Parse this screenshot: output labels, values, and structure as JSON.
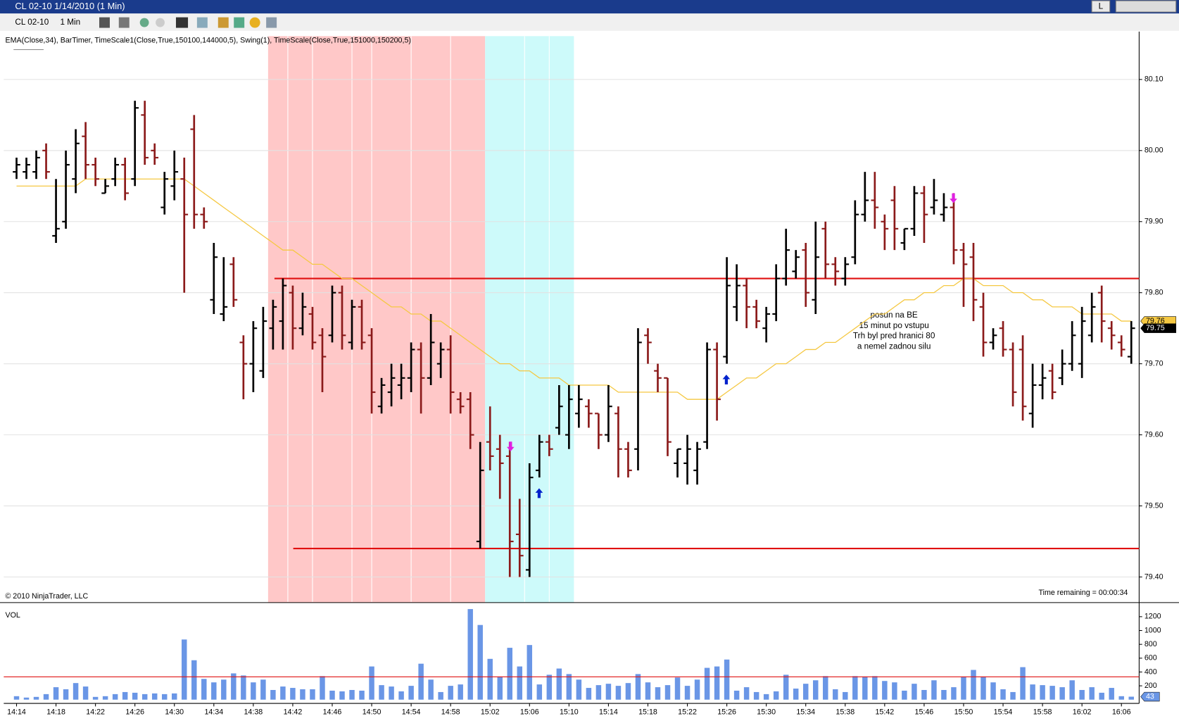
{
  "window_title": "CL 02-10  1/14/2010 (1 Min)",
  "window_button": "L",
  "toolbar": {
    "instrument": "CL 02-10",
    "interval": "1 Min"
  },
  "chart_data": {
    "type": "ohlc",
    "indicators_label": "EMA(Close,34), BarTimer, TimeScale1(Close,True,150100,144000,5), Swing(1), TimeScale(Close,True,151000,150200,5)",
    "copyright": "© 2010 NinjaTrader, LLC",
    "time_remaining": "Time remaining = 00:00:34",
    "volume_label": "VOL",
    "annotation": [
      "posun na BE",
      "15 minut po vstupu",
      "Trh byl pred hranici 80",
      "a nemel zadnou silu"
    ],
    "up_color": "#000000",
    "down_color": "#8b1a1a",
    "ema_color": "#f5c842",
    "volume_color": "#6a96e6",
    "level_color": "#e01010",
    "categories": [
      "14:14",
      null,
      null,
      null,
      "14:18",
      null,
      null,
      null,
      "14:22",
      null,
      null,
      null,
      "14:26",
      null,
      null,
      null,
      "14:30",
      null,
      null,
      null,
      "14:34",
      null,
      null,
      null,
      "14:38",
      null,
      null,
      null,
      "14:42",
      null,
      null,
      null,
      "14:46",
      null,
      null,
      null,
      "14:50",
      null,
      null,
      null,
      "14:54",
      null,
      null,
      null,
      "14:58",
      null,
      null,
      null,
      "15:02",
      null,
      null,
      null,
      "15:06",
      null,
      null,
      null,
      "15:10",
      null,
      null,
      null,
      "15:14",
      null,
      null,
      null,
      "15:18",
      null,
      null,
      null,
      "15:22",
      null,
      null,
      null,
      "15:26",
      null,
      null,
      null,
      "15:30",
      null,
      null,
      null,
      "15:34",
      null,
      null,
      null,
      "15:38",
      null,
      null,
      null,
      "15:42",
      null,
      null,
      null,
      "15:46",
      null,
      null,
      null,
      "15:50",
      null,
      null,
      null,
      "15:54",
      null,
      null,
      null,
      "15:58",
      null,
      null,
      null,
      "16:02",
      null,
      null,
      null,
      "16:06",
      null
    ],
    "bars": [
      [
        79.97,
        79.99,
        79.96,
        79.98
      ],
      [
        79.97,
        79.99,
        79.96,
        79.98
      ],
      [
        79.97,
        80.0,
        79.96,
        79.99
      ],
      [
        80.0,
        80.01,
        79.96,
        79.97
      ],
      [
        79.88,
        79.96,
        79.87,
        79.89
      ],
      [
        79.9,
        80.0,
        79.89,
        79.98
      ],
      [
        79.96,
        80.03,
        79.94,
        80.01
      ],
      [
        80.02,
        80.04,
        79.96,
        79.98
      ],
      [
        79.98,
        79.99,
        79.95,
        79.96
      ],
      [
        79.94,
        79.96,
        79.94,
        79.95
      ],
      [
        79.96,
        79.99,
        79.95,
        79.98
      ],
      [
        79.98,
        79.99,
        79.93,
        79.94
      ],
      [
        79.96,
        80.07,
        79.95,
        80.06
      ],
      [
        80.05,
        80.07,
        79.98,
        79.99
      ],
      [
        80.0,
        80.01,
        79.98,
        79.99
      ],
      [
        79.92,
        79.97,
        79.91,
        79.96
      ],
      [
        79.95,
        80.0,
        79.93,
        79.97
      ],
      [
        79.96,
        79.99,
        79.8,
        79.91
      ],
      [
        80.03,
        80.05,
        79.89,
        79.91
      ],
      [
        79.91,
        79.92,
        79.89,
        79.9
      ],
      [
        79.79,
        79.87,
        79.77,
        79.85
      ],
      [
        79.77,
        79.85,
        79.76,
        79.78
      ],
      [
        79.84,
        79.85,
        79.78,
        79.79
      ],
      [
        79.73,
        79.74,
        79.65,
        79.7
      ],
      [
        79.7,
        79.76,
        79.66,
        79.75
      ],
      [
        79.69,
        79.78,
        79.68,
        79.76
      ],
      [
        79.75,
        79.79,
        79.72,
        79.78
      ],
      [
        79.76,
        79.82,
        79.72,
        79.81
      ],
      [
        79.8,
        79.81,
        79.72,
        79.75
      ],
      [
        79.75,
        79.8,
        79.74,
        79.78
      ],
      [
        79.77,
        79.78,
        79.72,
        79.73
      ],
      [
        79.74,
        79.75,
        79.66,
        79.71
      ],
      [
        79.74,
        79.81,
        79.73,
        79.8
      ],
      [
        79.8,
        79.81,
        79.72,
        79.74
      ],
      [
        79.73,
        79.79,
        79.72,
        79.78
      ],
      [
        79.78,
        79.79,
        79.72,
        79.73
      ],
      [
        79.74,
        79.75,
        79.63,
        79.66
      ],
      [
        79.64,
        79.68,
        79.63,
        79.67
      ],
      [
        79.66,
        79.7,
        79.64,
        79.68
      ],
      [
        79.67,
        79.7,
        79.65,
        79.68
      ],
      [
        79.68,
        79.73,
        79.66,
        79.72
      ],
      [
        79.72,
        79.73,
        79.63,
        79.68
      ],
      [
        79.68,
        79.77,
        79.67,
        79.73
      ],
      [
        79.7,
        79.73,
        79.68,
        79.72
      ],
      [
        79.72,
        79.74,
        79.63,
        79.66
      ],
      [
        79.65,
        79.66,
        79.63,
        79.64
      ],
      [
        79.65,
        79.66,
        79.58,
        79.6
      ],
      [
        79.45,
        79.59,
        79.44,
        79.55
      ],
      [
        79.59,
        79.64,
        79.55,
        79.57
      ],
      [
        79.58,
        79.6,
        79.51,
        79.56
      ],
      [
        79.57,
        79.59,
        79.4,
        79.45
      ],
      [
        79.46,
        79.51,
        79.4,
        79.43
      ],
      [
        79.41,
        79.56,
        79.4,
        79.54
      ],
      [
        79.55,
        79.6,
        79.54,
        79.59
      ],
      [
        79.59,
        79.6,
        79.57,
        79.58
      ],
      [
        79.61,
        79.67,
        79.6,
        79.64
      ],
      [
        79.6,
        79.67,
        79.58,
        79.65
      ],
      [
        79.63,
        79.67,
        79.61,
        79.65
      ],
      [
        79.64,
        79.65,
        79.61,
        79.63
      ],
      [
        79.63,
        79.63,
        79.58,
        79.6
      ],
      [
        79.6,
        79.67,
        79.59,
        79.64
      ],
      [
        79.63,
        79.64,
        79.54,
        79.58
      ],
      [
        79.58,
        79.59,
        79.54,
        79.55
      ],
      [
        79.58,
        79.75,
        79.55,
        79.73
      ],
      [
        79.74,
        79.75,
        79.7,
        79.73
      ],
      [
        79.69,
        79.7,
        79.66,
        79.68
      ],
      [
        79.68,
        79.68,
        79.57,
        79.59
      ],
      [
        79.56,
        79.58,
        79.54,
        79.58
      ],
      [
        79.56,
        79.6,
        79.53,
        79.58
      ],
      [
        79.55,
        79.59,
        79.53,
        79.58
      ],
      [
        79.59,
        79.73,
        79.58,
        79.72
      ],
      [
        79.72,
        79.73,
        79.62,
        79.65
      ],
      [
        79.71,
        79.85,
        79.7,
        79.81
      ],
      [
        79.78,
        79.84,
        79.76,
        79.81
      ],
      [
        79.81,
        79.82,
        79.75,
        79.78
      ],
      [
        79.78,
        79.79,
        79.75,
        79.76
      ],
      [
        79.75,
        79.78,
        79.73,
        79.77
      ],
      [
        79.77,
        79.84,
        79.76,
        79.82
      ],
      [
        79.82,
        79.89,
        79.81,
        79.86
      ],
      [
        79.83,
        79.86,
        79.82,
        79.85
      ],
      [
        79.86,
        79.87,
        79.78,
        79.8
      ],
      [
        79.79,
        79.9,
        79.77,
        79.85
      ],
      [
        79.89,
        79.9,
        79.82,
        79.84
      ],
      [
        79.84,
        79.85,
        79.81,
        79.83
      ],
      [
        79.82,
        79.85,
        79.81,
        79.84
      ],
      [
        79.85,
        79.93,
        79.84,
        79.91
      ],
      [
        79.91,
        79.97,
        79.9,
        79.93
      ],
      [
        79.93,
        79.97,
        79.89,
        79.92
      ],
      [
        79.9,
        79.91,
        79.86,
        79.89
      ],
      [
        79.93,
        79.95,
        79.86,
        79.89
      ],
      [
        79.87,
        79.89,
        79.86,
        79.89
      ],
      [
        79.89,
        79.95,
        79.88,
        79.94
      ],
      [
        79.94,
        79.95,
        79.87,
        79.91
      ],
      [
        79.92,
        79.96,
        79.91,
        79.93
      ],
      [
        79.91,
        79.94,
        79.9,
        79.92
      ],
      [
        79.92,
        79.94,
        79.84,
        79.86
      ],
      [
        79.86,
        79.87,
        79.78,
        79.84
      ],
      [
        79.85,
        79.87,
        79.76,
        79.79
      ],
      [
        79.78,
        79.8,
        79.71,
        79.73
      ],
      [
        79.73,
        79.75,
        79.72,
        79.74
      ],
      [
        79.75,
        79.76,
        79.71,
        79.72
      ],
      [
        79.72,
        79.73,
        79.64,
        79.66
      ],
      [
        79.72,
        79.74,
        79.62,
        79.64
      ],
      [
        79.63,
        79.7,
        79.61,
        79.67
      ],
      [
        79.67,
        79.7,
        79.65,
        79.68
      ],
      [
        79.69,
        79.7,
        79.65,
        79.66
      ],
      [
        79.68,
        79.72,
        79.67,
        79.7
      ],
      [
        79.7,
        79.76,
        79.69,
        79.74
      ],
      [
        79.7,
        79.78,
        79.68,
        79.76
      ],
      [
        79.74,
        79.8,
        79.73,
        79.78
      ],
      [
        79.8,
        79.81,
        79.73,
        79.76
      ],
      [
        79.75,
        79.76,
        79.72,
        79.74
      ],
      [
        79.73,
        79.74,
        79.71,
        79.72
      ],
      [
        79.71,
        79.76,
        79.7,
        79.75
      ]
    ],
    "ema": [
      79.95,
      79.95,
      79.95,
      79.95,
      79.95,
      79.95,
      79.95,
      79.96,
      79.96,
      79.96,
      79.96,
      79.96,
      79.96,
      79.96,
      79.96,
      79.96,
      79.96,
      79.96,
      79.95,
      79.94,
      79.93,
      79.92,
      79.91,
      79.9,
      79.89,
      79.88,
      79.87,
      79.86,
      79.86,
      79.85,
      79.84,
      79.84,
      79.83,
      79.82,
      79.82,
      79.81,
      79.8,
      79.79,
      79.78,
      79.78,
      79.77,
      79.77,
      79.76,
      79.76,
      79.75,
      79.74,
      79.73,
      79.72,
      79.71,
      79.7,
      79.7,
      79.69,
      79.69,
      79.68,
      79.68,
      79.68,
      79.67,
      79.67,
      79.67,
      79.67,
      79.67,
      79.66,
      79.66,
      79.66,
      79.66,
      79.66,
      79.66,
      79.66,
      79.65,
      79.65,
      79.65,
      79.65,
      79.66,
      79.67,
      79.68,
      79.68,
      79.69,
      79.7,
      79.7,
      79.71,
      79.72,
      79.72,
      79.73,
      79.73,
      79.74,
      79.75,
      79.76,
      79.77,
      79.77,
      79.78,
      79.79,
      79.79,
      79.8,
      79.8,
      79.81,
      79.81,
      79.82,
      79.82,
      79.81,
      79.81,
      79.81,
      79.8,
      79.8,
      79.79,
      79.79,
      79.78,
      79.78,
      79.78,
      79.77,
      79.77,
      79.77,
      79.77,
      79.76,
      79.76
    ],
    "volume": [
      50,
      30,
      40,
      80,
      180,
      150,
      240,
      190,
      40,
      50,
      80,
      110,
      100,
      80,
      90,
      80,
      90,
      870,
      570,
      300,
      250,
      290,
      380,
      350,
      250,
      290,
      140,
      190,
      170,
      150,
      150,
      340,
      130,
      120,
      140,
      130,
      480,
      210,
      190,
      120,
      200,
      520,
      290,
      110,
      200,
      220,
      1310,
      1080,
      590,
      330,
      750,
      480,
      790,
      220,
      360,
      450,
      370,
      290,
      170,
      210,
      230,
      200,
      240,
      370,
      250,
      180,
      210,
      320,
      200,
      290,
      460,
      480,
      580,
      130,
      180,
      110,
      80,
      120,
      360,
      160,
      230,
      280,
      340,
      150,
      110,
      340,
      330,
      340,
      270,
      250,
      130,
      230,
      140,
      280,
      140,
      180,
      330,
      430,
      330,
      250,
      150,
      110,
      470,
      220,
      210,
      200,
      180,
      280,
      140,
      180,
      100,
      170,
      50,
      43
    ],
    "volume_line": 330,
    "levels": [
      79.82,
      79.44
    ],
    "ylim": [
      79.365,
      80.161
    ],
    "yticks": [
      {
        "value": 79.4,
        "label": "79.40"
      },
      {
        "value": 79.5,
        "label": "79.50"
      },
      {
        "value": 79.6,
        "label": "79.60"
      },
      {
        "value": 79.7,
        "label": "79.70"
      },
      {
        "value": 79.8,
        "label": "79.80"
      },
      {
        "value": 79.9,
        "label": "79.90"
      },
      {
        "value": 80.0,
        "label": "80.00"
      },
      {
        "value": 80.1,
        "label": "80.10"
      }
    ],
    "vlim": [
      0,
      1360
    ],
    "vticks": [
      200,
      400,
      600,
      800,
      1000,
      1200
    ],
    "grid": true
  }
}
